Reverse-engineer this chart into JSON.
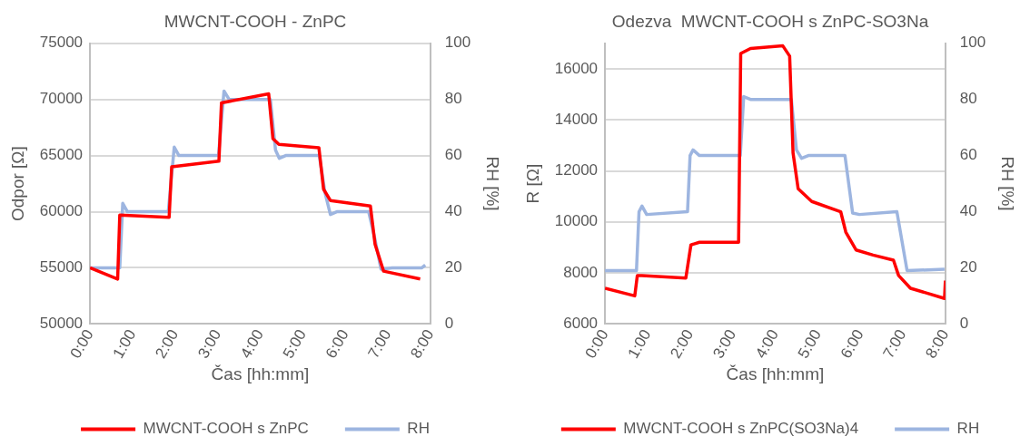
{
  "chart_data": [
    {
      "type": "line",
      "title": "MWCNT-COOH - ZnPC",
      "xlabel": "Čas [hh:mm]",
      "ylabel": "Odpor [Ω]",
      "y2label": "RH [%]",
      "xlim": [
        0,
        8
      ],
      "xticks": [
        {
          "value": 0,
          "label": "0:00"
        },
        {
          "value": 1,
          "label": "1:00"
        },
        {
          "value": 2,
          "label": "2:00"
        },
        {
          "value": 3,
          "label": "3:00"
        },
        {
          "value": 4,
          "label": "4:00"
        },
        {
          "value": 5,
          "label": "5:00"
        },
        {
          "value": 6,
          "label": "6:00"
        },
        {
          "value": 7,
          "label": "7:00"
        },
        {
          "value": 8,
          "label": "8:00"
        }
      ],
      "ylim": [
        50000,
        75000
      ],
      "yticks": [
        50000,
        55000,
        60000,
        65000,
        70000,
        75000
      ],
      "y2lim": [
        0,
        100
      ],
      "y2ticks": [
        0,
        20,
        40,
        60,
        80,
        100
      ],
      "grid": "y",
      "legend": "bottom",
      "marker": "none",
      "line_style": "solid",
      "series": [
        {
          "name": "MWCNT-COOH s ZnPC",
          "color": "#ff0000",
          "x": [
            0,
            0.65,
            0.7,
            1.86,
            1.92,
            3.03,
            3.09,
            4.2,
            4.3,
            4.44,
            5.38,
            5.49,
            5.65,
            6.59,
            6.7,
            6.9,
            7.76
          ],
          "values": [
            55000,
            54000,
            59700,
            59500,
            64000,
            64500,
            69700,
            70500,
            66500,
            66000,
            65700,
            62000,
            61000,
            60500,
            57100,
            54700,
            54000
          ]
        },
        {
          "name": "RH",
          "color": "#9db5e0",
          "axis": "y2",
          "x": [
            0,
            0.7,
            0.77,
            0.88,
            1.84,
            1.98,
            2.09,
            3.02,
            3.15,
            3.27,
            4.24,
            4.36,
            4.45,
            4.6,
            5.39,
            5.52,
            5.65,
            5.8,
            6.55,
            6.7,
            6.84,
            7.1,
            7.8,
            7.88
          ],
          "values": [
            20,
            20,
            43,
            40,
            40,
            63,
            60,
            60,
            83,
            80,
            80,
            62,
            59,
            60,
            60,
            47,
            39,
            40,
            40,
            30,
            19.5,
            20,
            20,
            21
          ]
        }
      ]
    },
    {
      "type": "line",
      "title": "Odezva  MWCNT-COOH s ZnPC-SO3Na",
      "xlabel": "Čas [hh:mm]",
      "ylabel": "R [Ω]",
      "y2label": "RH [%]",
      "xlim": [
        0,
        8
      ],
      "xticks": [
        {
          "value": 0,
          "label": "0:00"
        },
        {
          "value": 1,
          "label": "1:00"
        },
        {
          "value": 2,
          "label": "2:00"
        },
        {
          "value": 3,
          "label": "3:00"
        },
        {
          "value": 4,
          "label": "4:00"
        },
        {
          "value": 5,
          "label": "5:00"
        },
        {
          "value": 6,
          "label": "6:00"
        },
        {
          "value": 7,
          "label": "7:00"
        },
        {
          "value": 8,
          "label": "8:00"
        }
      ],
      "ylim": [
        6000,
        17000
      ],
      "yticks": [
        6000,
        8000,
        10000,
        12000,
        14000,
        16000
      ],
      "y2lim": [
        0,
        100
      ],
      "y2ticks": [
        0,
        20,
        40,
        60,
        80,
        100
      ],
      "grid": "y",
      "legend": "bottom",
      "marker": "none",
      "line_style": "solid",
      "series": [
        {
          "name": "MWCNT-COOH s ZnPC(SO3Na)4",
          "color": "#ff0000",
          "x": [
            0,
            0.7,
            0.76,
            0.87,
            1.9,
            2.02,
            2.22,
            3.14,
            3.19,
            3.42,
            4.18,
            4.34,
            4.42,
            4.54,
            4.86,
            5.54,
            5.66,
            5.9,
            6.3,
            6.78,
            6.9,
            7.18,
            7.98,
            8.0
          ],
          "values": [
            7400,
            7100,
            7900,
            7900,
            7800,
            9100,
            9200,
            9200,
            16600,
            16800,
            16900,
            16500,
            12700,
            11300,
            10800,
            10400,
            9600,
            8900,
            8700,
            8500,
            7900,
            7400,
            7000,
            7700
          ]
        },
        {
          "name": "RH",
          "color": "#9db5e0",
          "axis": "y2",
          "x": [
            0,
            0.74,
            0.8,
            0.87,
            0.98,
            1.94,
            2.0,
            2.07,
            2.22,
            3.18,
            3.26,
            3.42,
            4.38,
            4.5,
            4.62,
            4.78,
            5.64,
            5.82,
            5.98,
            6.86,
            7.1,
            7.98
          ],
          "values": [
            19,
            19,
            40,
            42,
            39,
            40,
            60,
            62,
            60,
            60,
            81,
            80,
            80,
            62,
            59,
            60,
            60,
            39.5,
            39,
            40,
            19,
            19.5
          ]
        }
      ]
    }
  ]
}
